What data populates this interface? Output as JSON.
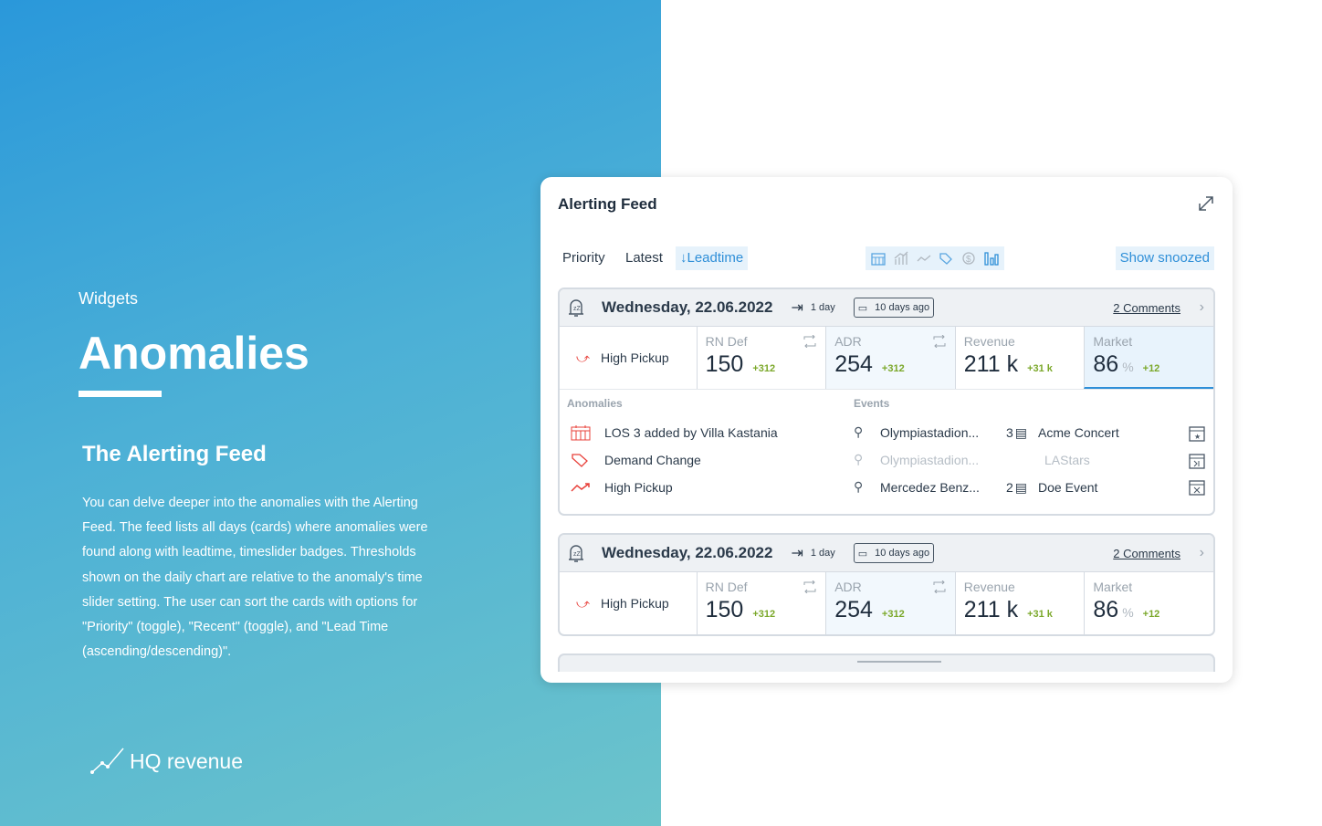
{
  "left": {
    "eyebrow": "Widgets",
    "title": "Anomalies",
    "subtitle": "The Alerting Feed",
    "description": "You can delve deeper into the anomalies with the Alerting Feed. The feed lists all days (cards) where anomalies were found along with leadtime, timeslider badges. Thresholds shown on the daily chart are relative to the anomaly's time slider setting. The user can sort the cards with options for \"Priority\" (toggle), \"Recent\" (toggle), and \"Lead Time (ascending/descending)\".",
    "logo": "HQ revenue"
  },
  "panel": {
    "title": "Alerting Feed",
    "sort": {
      "priority": "Priority",
      "latest": "Latest",
      "leadtime": "↓Leadtime"
    },
    "filter_icons": [
      "calendar-icon",
      "chart-icon",
      "trend-icon",
      "tag-icon",
      "currency-icon",
      "bar-chart-icon"
    ],
    "show_snoozed": "Show snoozed",
    "accent": "#2f8fd8",
    "cards": [
      {
        "date": "Wednesday, 22.06.2022",
        "leadtime": "1 day",
        "ago": "10 days ago",
        "comments": "2 Comments",
        "anomaly": "High Pickup",
        "metrics": [
          {
            "label": "RN Def",
            "value": "150",
            "delta": "+312"
          },
          {
            "label": "ADR",
            "value": "254",
            "delta": "+312"
          },
          {
            "label": "Revenue",
            "value": "211 k",
            "delta": "+31 k"
          },
          {
            "label": "Market",
            "value": "86",
            "unit": "%",
            "delta": "+12"
          }
        ],
        "anomalies_header": "Anomalies",
        "events_header": "Events",
        "anomalies": [
          "LOS 3 added by Villa Kastania",
          "Demand Change",
          "High Pickup"
        ],
        "events": [
          {
            "venue": "Olympiastadion...",
            "count": "3",
            "name": "Acme Concert"
          },
          {
            "venue": "Olympiastadion...",
            "count": "",
            "name": "LAStars"
          },
          {
            "venue": "Mercedez Benz...",
            "count": "2",
            "name": "Doe Event"
          }
        ]
      },
      {
        "date": "Wednesday, 22.06.2022",
        "leadtime": "1 day",
        "ago": "10 days ago",
        "comments": "2 Comments",
        "anomaly": "High Pickup",
        "metrics": [
          {
            "label": "RN Def",
            "value": "150",
            "delta": "+312"
          },
          {
            "label": "ADR",
            "value": "254",
            "delta": "+312"
          },
          {
            "label": "Revenue",
            "value": "211 k",
            "delta": "+31 k"
          },
          {
            "label": "Market",
            "value": "86",
            "unit": "%",
            "delta": "+12"
          }
        ]
      }
    ]
  }
}
